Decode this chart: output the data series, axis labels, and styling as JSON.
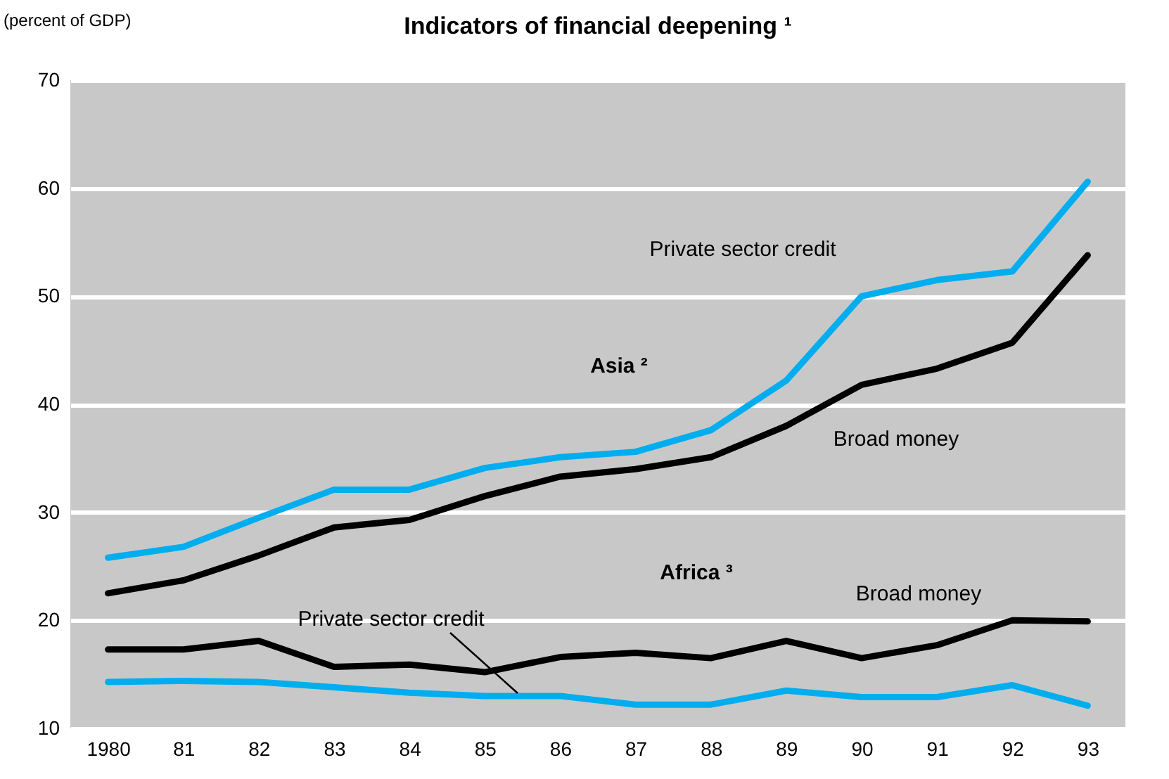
{
  "chart_data": {
    "type": "line",
    "title": "Indicators of financial deepening ¹",
    "ylabel": "(percent of GDP)",
    "categories": [
      "1980",
      "81",
      "82",
      "83",
      "84",
      "85",
      "86",
      "87",
      "88",
      "89",
      "90",
      "91",
      "92",
      "93"
    ],
    "series": [
      {
        "name": "Private sector credit",
        "color": "#00aeef",
        "values": [
          25.8,
          26.8,
          29.5,
          32.1,
          32.1,
          34.1,
          35.1,
          35.6,
          37.6,
          42.2,
          50.0,
          51.5,
          52.3,
          60.6
        ]
      },
      {
        "name": "Broad money",
        "color": "#000000",
        "values": [
          22.5,
          23.7,
          26.0,
          28.6,
          29.3,
          31.5,
          33.3,
          34.0,
          35.1,
          38.0,
          41.8,
          43.3,
          45.7,
          53.8
        ]
      },
      {
        "name": "Broad money",
        "color": "#000000",
        "values": [
          17.3,
          17.3,
          18.1,
          15.7,
          15.9,
          15.2,
          16.6,
          17.0,
          16.5,
          18.1,
          16.5,
          17.7,
          20.0,
          19.9
        ]
      },
      {
        "name": "Private sector credit",
        "color": "#00aeef",
        "values": [
          14.3,
          14.4,
          14.3,
          13.8,
          13.3,
          13.0,
          13.0,
          12.2,
          12.2,
          13.5,
          12.9,
          12.9,
          14.0,
          12.1
        ]
      }
    ],
    "annotations": [
      "Asia ²",
      "Africa ³"
    ],
    "ylim": [
      10,
      70
    ],
    "yticks": [
      10,
      20,
      30,
      40,
      50,
      60,
      70
    ],
    "grid": "y"
  }
}
